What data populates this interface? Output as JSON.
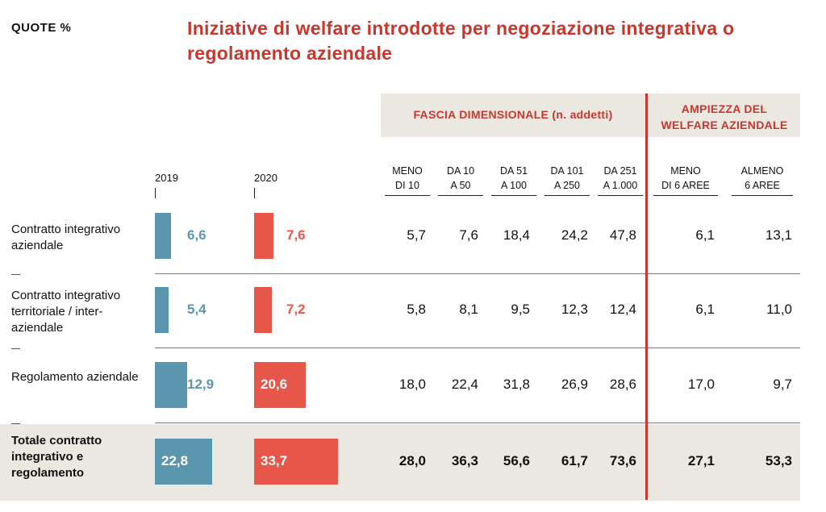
{
  "header": {
    "quote_label": "QUOTE %",
    "title": "Iniziative di welfare introdotte per negoziazione integrativa o regolamento aziendale"
  },
  "groups": {
    "fascia": "FASCIA DIMENSIONALE (n. addetti)",
    "ampiezza": "AMPIEZZA DEL WELFARE AZIENDALE"
  },
  "years": [
    "2019",
    "2020"
  ],
  "columns": [
    {
      "l1": "MENO",
      "l2": "DI 10"
    },
    {
      "l1": "DA 10",
      "l2": "A 50"
    },
    {
      "l1": "DA 51",
      "l2": "A 100"
    },
    {
      "l1": "DA 101",
      "l2": "A 250"
    },
    {
      "l1": "DA 251",
      "l2": "A 1.000"
    },
    {
      "l1": "MENO",
      "l2": "DI 6 AREE"
    },
    {
      "l1": "ALMENO",
      "l2": "6 AREE"
    }
  ],
  "rows": [
    {
      "label": "Contratto integrativo aziendale",
      "v2019": "6,6",
      "v2020": "7,6",
      "cells": [
        "5,7",
        "7,6",
        "18,4",
        "24,2",
        "47,8",
        "6,1",
        "13,1"
      ]
    },
    {
      "label": "Contratto integrativo territoriale / inter-aziendale",
      "v2019": "5,4",
      "v2020": "7,2",
      "cells": [
        "5,8",
        "8,1",
        "9,5",
        "12,3",
        "12,4",
        "6,1",
        "11,0"
      ]
    },
    {
      "label": "Regolamento aziendale",
      "v2019": "12,9",
      "v2020": "20,6",
      "cells": [
        "18,0",
        "22,4",
        "31,8",
        "26,9",
        "28,6",
        "17,0",
        "9,7"
      ]
    },
    {
      "label": "Totale contratto integrativo e regolamento",
      "v2019": "22,8",
      "v2020": "33,7",
      "cells": [
        "28,0",
        "36,3",
        "56,6",
        "61,7",
        "73,6",
        "27,1",
        "53,3"
      ]
    }
  ],
  "colors": {
    "series2019": "#5a96ad",
    "series2020": "#e6574a",
    "accent": "#c8372d",
    "band": "#ebe8e1"
  },
  "chart_data": {
    "type": "bar",
    "categories": [
      "Contratto integrativo aziendale",
      "Contratto integrativo territoriale / inter-aziendale",
      "Regolamento aziendale",
      "Totale contratto integrativo e regolamento"
    ],
    "series": [
      {
        "name": "2019",
        "values": [
          6.6,
          5.4,
          12.9,
          22.8
        ]
      },
      {
        "name": "2020",
        "values": [
          7.6,
          7.2,
          20.6,
          33.7
        ]
      }
    ]
  }
}
